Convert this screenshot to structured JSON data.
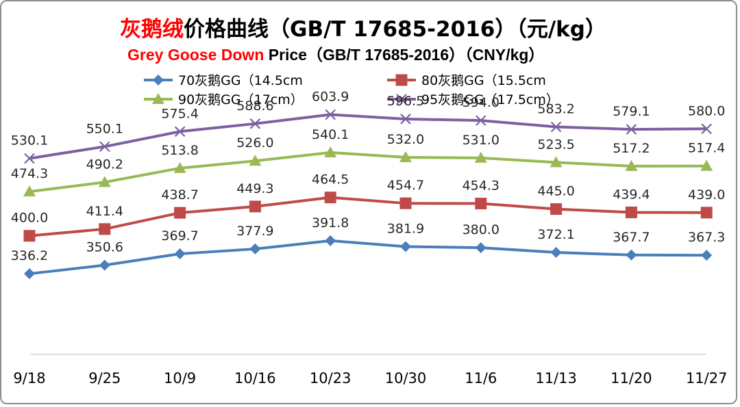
{
  "title": {
    "line1_red": "灰鹅绒",
    "line1_rest": "价格曲线（GB/T 17685-2016）（元/kg）",
    "line2_red": "Grey Goose Down",
    "line2_rest": " Price（GB/T 17685-2016）（CNY/kg）"
  },
  "colors": {
    "accent_red": "#ff0000",
    "series_blue": "#4a7ebb",
    "series_red": "#be4b48",
    "series_green": "#98b954",
    "series_purple": "#7d60a0",
    "frame": "#8c8c8c"
  },
  "chart_data": {
    "type": "line",
    "categories": [
      "9/18",
      "9/25",
      "10/9",
      "10/16",
      "10/23",
      "10/30",
      "11/6",
      "11/13",
      "11/20",
      "11/27"
    ],
    "series": [
      {
        "name": "95灰鹅GG（17.5cm）",
        "marker": "x",
        "color": "#7d60a0",
        "values": [
          530.1,
          550.1,
          575.4,
          588.6,
          603.9,
          596.5,
          594.0,
          583.2,
          579.1,
          580.0
        ]
      },
      {
        "name": "90灰鹅GG（17cm）",
        "marker": "triangle",
        "color": "#98b954",
        "values": [
          474.3,
          490.2,
          513.8,
          526.0,
          540.1,
          532.0,
          531.0,
          523.5,
          517.2,
          517.4
        ]
      },
      {
        "name": "80灰鹅GG（15.5cm）",
        "marker": "square",
        "color": "#be4b48",
        "values": [
          400.0,
          411.4,
          438.7,
          449.3,
          464.5,
          454.7,
          454.3,
          445.0,
          439.4,
          439.0
        ]
      },
      {
        "name": "70灰鹅GG（14.5cm）",
        "marker": "diamond",
        "color": "#4a7ebb",
        "values": [
          336.2,
          350.6,
          369.7,
          377.9,
          391.8,
          381.9,
          380.0,
          372.1,
          367.7,
          367.3
        ]
      }
    ],
    "legend": [
      {
        "label": "70灰鹅GG（14.5cm",
        "marker": "diamond",
        "color": "#4a7ebb"
      },
      {
        "label": "80灰鹅GG（15.5cm",
        "marker": "square",
        "color": "#be4b48"
      },
      {
        "label": "90灰鹅GG（17cm）",
        "marker": "triangle",
        "color": "#98b954"
      },
      {
        "label": "95灰鹅GG（17.5cm）",
        "marker": "x",
        "color": "#7d60a0"
      }
    ],
    "legend_position": "top",
    "grid": false,
    "ylim": [
      150,
      700
    ],
    "xlabel": "",
    "ylabel": ""
  }
}
